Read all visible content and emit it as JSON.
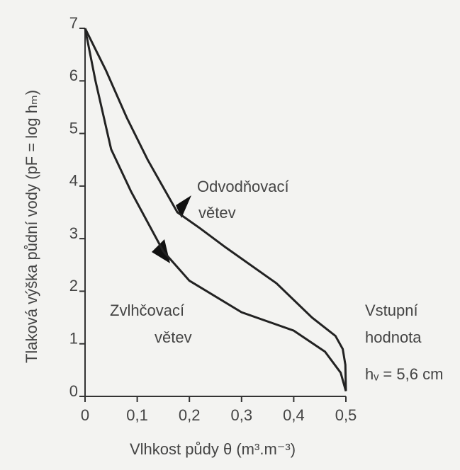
{
  "chart_data": {
    "type": "line",
    "xlabel": "Vlhkost půdy θ (m³.m⁻³)",
    "ylabel": "Tlaková výška půdní vody (pF = log hₘ)",
    "xlim": [
      0,
      0.5
    ],
    "xticks": [
      0,
      {
        "value": 0.1,
        "label": "0,1"
      },
      {
        "value": 0.2,
        "label": "0,2"
      },
      {
        "value": 0.3,
        "label": "0,3"
      },
      {
        "value": 0.4,
        "label": "0,4"
      },
      {
        "value": 0.5,
        "label": "0,5"
      }
    ],
    "ylim": [
      0,
      7
    ],
    "yticks": [
      0,
      1,
      2,
      3,
      4,
      5,
      6,
      7
    ],
    "series": [
      {
        "name": "Odvodňovací větev",
        "color": "#222222",
        "x": [
          0.5,
          0.499,
          0.494,
          0.48,
          0.435,
          0.367,
          0.27,
          0.22,
          0.177,
          0.12,
          0.08,
          0.04,
          0
        ],
        "values": [
          0.1,
          0.6,
          0.9,
          1.15,
          1.5,
          2.15,
          2.83,
          3.2,
          3.5,
          4.5,
          5.3,
          6.2,
          7
        ]
      },
      {
        "name": "Zvlhčovací větev",
        "color": "#222222",
        "x": [
          0,
          0.02,
          0.05,
          0.088,
          0.15,
          0.2,
          0.3,
          0.4,
          0.46,
          0.49,
          0.5
        ],
        "values": [
          7,
          6,
          4.7,
          3.9,
          2.76,
          2.2,
          1.6,
          1.25,
          0.85,
          0.45,
          0.1
        ]
      }
    ],
    "annotations": [
      "Odvodňovací",
      "větev",
      "Zvlhčovací",
      "větev",
      "Vstupní",
      "hodnota",
      "hᵥ = 5,6 cm"
    ]
  }
}
